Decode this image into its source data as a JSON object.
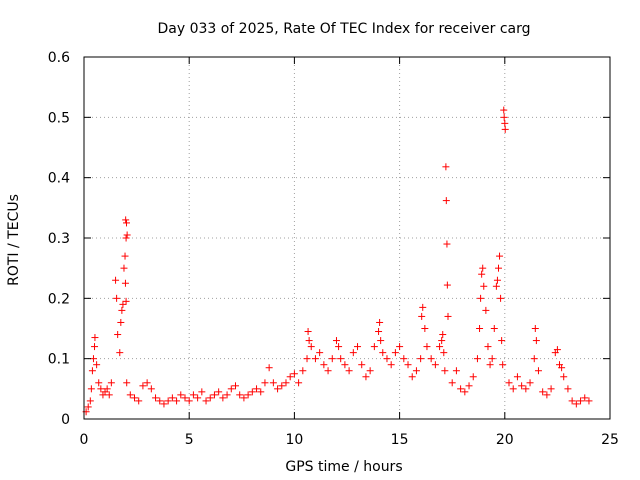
{
  "chart_data": {
    "type": "scatter",
    "title": "Day 033 of 2025, Rate Of TEC Index for receiver carg",
    "xlabel": "GPS time / hours",
    "ylabel": "ROTI / TECUs",
    "xlim": [
      0,
      25
    ],
    "ylim": [
      0,
      0.6
    ],
    "xticks": [
      0,
      5,
      10,
      15,
      20,
      25
    ],
    "yticks": [
      0,
      0.1,
      0.2,
      0.3,
      0.4,
      0.5,
      0.6
    ],
    "xtick_labels": [
      "0",
      "5",
      "10",
      "15",
      "20",
      "25"
    ],
    "ytick_labels": [
      "0",
      "0.1",
      "0.2",
      "0.3",
      "0.4",
      "0.5",
      "0.6"
    ],
    "grid": true,
    "marker": "+",
    "color": "#ff0000",
    "series": [
      {
        "name": "ROTI",
        "points": [
          [
            0.1,
            0.012
          ],
          [
            0.2,
            0.02
          ],
          [
            0.3,
            0.03
          ],
          [
            0.35,
            0.05
          ],
          [
            0.4,
            0.08
          ],
          [
            0.45,
            0.1
          ],
          [
            0.5,
            0.12
          ],
          [
            0.52,
            0.135
          ],
          [
            0.6,
            0.09
          ],
          [
            0.7,
            0.06
          ],
          [
            0.8,
            0.05
          ],
          [
            0.9,
            0.04
          ],
          [
            1.0,
            0.045
          ],
          [
            1.1,
            0.05
          ],
          [
            1.2,
            0.04
          ],
          [
            1.3,
            0.06
          ],
          [
            1.5,
            0.23
          ],
          [
            1.55,
            0.2
          ],
          [
            1.6,
            0.14
          ],
          [
            1.7,
            0.11
          ],
          [
            1.75,
            0.16
          ],
          [
            1.8,
            0.18
          ],
          [
            1.85,
            0.19
          ],
          [
            1.9,
            0.25
          ],
          [
            1.95,
            0.27
          ],
          [
            2.0,
            0.3
          ],
          [
            1.98,
            0.33
          ],
          [
            2.02,
            0.325
          ],
          [
            2.05,
            0.305
          ],
          [
            1.97,
            0.225
          ],
          [
            2.0,
            0.195
          ],
          [
            2.03,
            0.06
          ],
          [
            2.2,
            0.04
          ],
          [
            2.4,
            0.035
          ],
          [
            2.6,
            0.03
          ],
          [
            2.8,
            0.055
          ],
          [
            3.0,
            0.06
          ],
          [
            3.2,
            0.05
          ],
          [
            3.4,
            0.035
          ],
          [
            3.6,
            0.03
          ],
          [
            3.8,
            0.025
          ],
          [
            4.0,
            0.03
          ],
          [
            4.2,
            0.035
          ],
          [
            4.4,
            0.03
          ],
          [
            4.6,
            0.04
          ],
          [
            4.8,
            0.035
          ],
          [
            5.0,
            0.03
          ],
          [
            5.2,
            0.04
          ],
          [
            5.4,
            0.035
          ],
          [
            5.6,
            0.045
          ],
          [
            5.8,
            0.03
          ],
          [
            6.0,
            0.035
          ],
          [
            6.2,
            0.04
          ],
          [
            6.4,
            0.045
          ],
          [
            6.6,
            0.035
          ],
          [
            6.8,
            0.04
          ],
          [
            7.0,
            0.05
          ],
          [
            7.2,
            0.055
          ],
          [
            7.4,
            0.04
          ],
          [
            7.6,
            0.035
          ],
          [
            7.8,
            0.04
          ],
          [
            8.0,
            0.045
          ],
          [
            8.2,
            0.05
          ],
          [
            8.4,
            0.045
          ],
          [
            8.6,
            0.06
          ],
          [
            8.8,
            0.085
          ],
          [
            9.0,
            0.06
          ],
          [
            9.2,
            0.05
          ],
          [
            9.4,
            0.055
          ],
          [
            9.6,
            0.06
          ],
          [
            9.8,
            0.07
          ],
          [
            10.0,
            0.075
          ],
          [
            10.2,
            0.06
          ],
          [
            10.4,
            0.08
          ],
          [
            10.6,
            0.1
          ],
          [
            10.65,
            0.145
          ],
          [
            10.7,
            0.13
          ],
          [
            10.8,
            0.12
          ],
          [
            11.0,
            0.1
          ],
          [
            11.2,
            0.11
          ],
          [
            11.4,
            0.09
          ],
          [
            11.6,
            0.08
          ],
          [
            11.8,
            0.1
          ],
          [
            12.0,
            0.13
          ],
          [
            12.1,
            0.12
          ],
          [
            12.2,
            0.1
          ],
          [
            12.4,
            0.09
          ],
          [
            12.6,
            0.08
          ],
          [
            12.8,
            0.11
          ],
          [
            13.0,
            0.12
          ],
          [
            13.2,
            0.09
          ],
          [
            13.4,
            0.07
          ],
          [
            13.6,
            0.08
          ],
          [
            13.8,
            0.12
          ],
          [
            14.0,
            0.145
          ],
          [
            14.05,
            0.16
          ],
          [
            14.1,
            0.13
          ],
          [
            14.2,
            0.11
          ],
          [
            14.4,
            0.1
          ],
          [
            14.6,
            0.09
          ],
          [
            14.8,
            0.11
          ],
          [
            15.0,
            0.12
          ],
          [
            15.2,
            0.1
          ],
          [
            15.4,
            0.09
          ],
          [
            15.6,
            0.07
          ],
          [
            15.8,
            0.08
          ],
          [
            16.0,
            0.1
          ],
          [
            16.05,
            0.17
          ],
          [
            16.1,
            0.185
          ],
          [
            16.2,
            0.15
          ],
          [
            16.3,
            0.12
          ],
          [
            16.5,
            0.1
          ],
          [
            16.7,
            0.09
          ],
          [
            16.9,
            0.12
          ],
          [
            17.0,
            0.13
          ],
          [
            17.05,
            0.14
          ],
          [
            17.1,
            0.11
          ],
          [
            17.15,
            0.08
          ],
          [
            17.2,
            0.418
          ],
          [
            17.22,
            0.362
          ],
          [
            17.25,
            0.29
          ],
          [
            17.27,
            0.222
          ],
          [
            17.3,
            0.17
          ],
          [
            17.5,
            0.06
          ],
          [
            17.7,
            0.08
          ],
          [
            17.9,
            0.05
          ],
          [
            18.1,
            0.045
          ],
          [
            18.3,
            0.055
          ],
          [
            18.5,
            0.07
          ],
          [
            18.7,
            0.1
          ],
          [
            18.8,
            0.15
          ],
          [
            18.85,
            0.2
          ],
          [
            18.9,
            0.24
          ],
          [
            18.95,
            0.25
          ],
          [
            19.0,
            0.22
          ],
          [
            19.1,
            0.18
          ],
          [
            19.2,
            0.12
          ],
          [
            19.3,
            0.09
          ],
          [
            19.4,
            0.1
          ],
          [
            19.5,
            0.15
          ],
          [
            19.6,
            0.22
          ],
          [
            19.65,
            0.23
          ],
          [
            19.7,
            0.25
          ],
          [
            19.75,
            0.27
          ],
          [
            19.8,
            0.2
          ],
          [
            19.85,
            0.13
          ],
          [
            19.9,
            0.09
          ],
          [
            19.95,
            0.512
          ],
          [
            19.97,
            0.5
          ],
          [
            20.0,
            0.49
          ],
          [
            20.02,
            0.48
          ],
          [
            20.2,
            0.06
          ],
          [
            20.4,
            0.05
          ],
          [
            20.6,
            0.07
          ],
          [
            20.8,
            0.055
          ],
          [
            21.0,
            0.05
          ],
          [
            21.2,
            0.06
          ],
          [
            21.4,
            0.1
          ],
          [
            21.45,
            0.15
          ],
          [
            21.5,
            0.13
          ],
          [
            21.6,
            0.08
          ],
          [
            21.8,
            0.045
          ],
          [
            22.0,
            0.04
          ],
          [
            22.2,
            0.05
          ],
          [
            22.4,
            0.11
          ],
          [
            22.5,
            0.115
          ],
          [
            22.6,
            0.09
          ],
          [
            22.7,
            0.085
          ],
          [
            22.8,
            0.07
          ],
          [
            23.0,
            0.05
          ],
          [
            23.2,
            0.03
          ],
          [
            23.4,
            0.025
          ],
          [
            23.6,
            0.03
          ],
          [
            23.8,
            0.035
          ],
          [
            24.0,
            0.03
          ]
        ]
      }
    ]
  }
}
